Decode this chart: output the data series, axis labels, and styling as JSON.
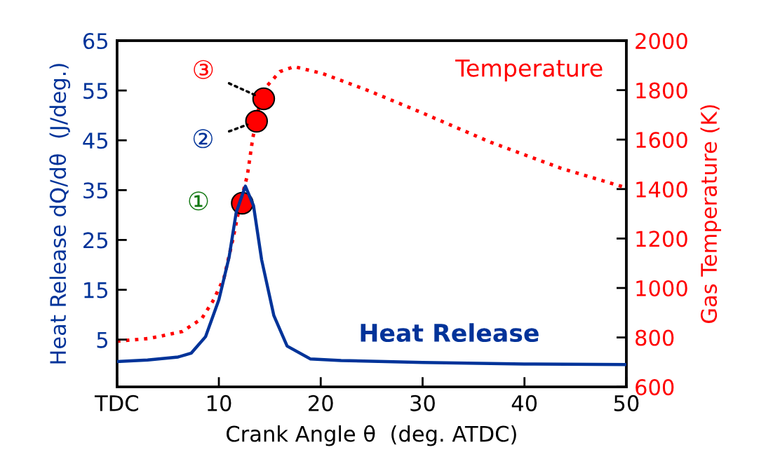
{
  "chart_data": {
    "type": "line",
    "xlabel": "Crank Angle θ  (deg. ATDC)",
    "ylabel": "Heat Release dQ/dθ  (J/deg.)",
    "y2label": "Gas Temperature (K)",
    "xlim": [
      0,
      50
    ],
    "xticks": [
      {
        "value": 0,
        "label": "TDC"
      },
      10,
      20,
      30,
      40,
      50
    ],
    "ylim": [
      -4.5,
      65
    ],
    "yticks": [
      5,
      15,
      25,
      35,
      45,
      55,
      65
    ],
    "y2lim": [
      600,
      2000
    ],
    "y2ticks": [
      600,
      800,
      1000,
      1200,
      1400,
      1600,
      1800,
      2000
    ],
    "grid": false,
    "legend": false,
    "series": [
      {
        "name": "Heat Release",
        "color": "#003399",
        "line_style": "solid",
        "marker": "none",
        "x": [
          0,
          3,
          6,
          7.3,
          8.7,
          10.0,
          11.0,
          11.7,
          12.6,
          13.4,
          14.2,
          15.4,
          16.7,
          19,
          22,
          30,
          40,
          50
        ],
        "values": [
          0.6,
          0.9,
          1.5,
          2.3,
          5.6,
          13.0,
          21.5,
          30.5,
          35.8,
          31.9,
          21,
          9.8,
          3.7,
          1.1,
          0.8,
          0.4,
          0.1,
          0.0
        ]
      },
      {
        "name": "Temperature",
        "axis": "y2",
        "color": "#ff0000",
        "line_style": "dotted",
        "marker": "none",
        "x": [
          0,
          3.2,
          6.4,
          8.3,
          9.4,
          10.5,
          11.4,
          12.1,
          12.8,
          13.3,
          13.8,
          14.7,
          16.0,
          17.4,
          20.2,
          24.8,
          29.8,
          36.7,
          43.6,
          50
        ],
        "values": [
          785,
          796,
          824,
          875,
          946,
          1040,
          1201,
          1343,
          1456,
          1598,
          1711,
          1816,
          1875,
          1895,
          1867,
          1796,
          1711,
          1589,
          1484,
          1405
        ]
      },
      {
        "type": "scatter",
        "axis": "y2",
        "color": "#ff0000",
        "marker": "circle",
        "x": [
          12.3,
          13.7,
          14.4
        ],
        "values": [
          1343,
          1674,
          1765
        ]
      }
    ],
    "annotations": [
      "①",
      {
        "text": "②",
        "x": 13.7,
        "y": 48.8
      },
      {
        "text": "③",
        "x": 14.4,
        "y": 53.3
      }
    ]
  }
}
